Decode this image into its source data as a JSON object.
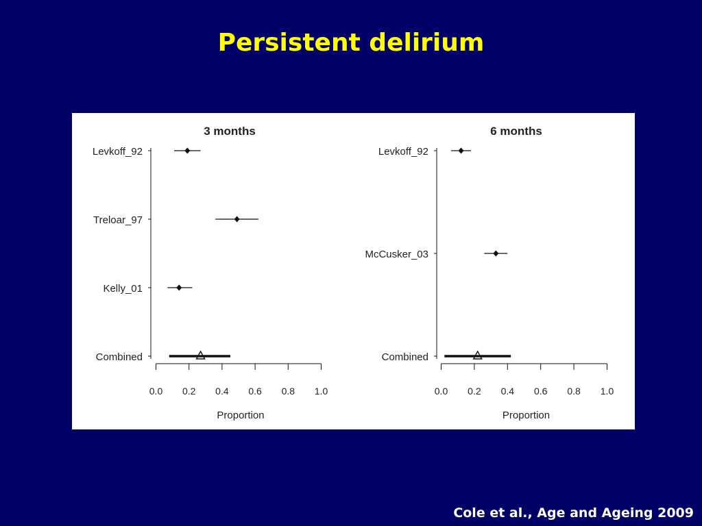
{
  "slide": {
    "title": "Persistent delirium",
    "citation": "Cole et al., Age and Ageing 2009"
  },
  "colors": {
    "background": "#000066",
    "title": "#ffff00",
    "citation": "#ffffff",
    "panel": "#ffffff",
    "marks": "#111111"
  },
  "chart_data": [
    {
      "type": "forest",
      "title": "3 months",
      "xlabel": "Proportion",
      "xlim": [
        0.0,
        1.0
      ],
      "xticks": [
        "0.0",
        "0.2",
        "0.4",
        "0.6",
        "0.8",
        "1.0"
      ],
      "grid": false,
      "studies": [
        {
          "label": "Levkoff_92",
          "estimate": 0.19,
          "lower": 0.11,
          "upper": 0.27
        },
        {
          "label": "Treloar_97",
          "estimate": 0.49,
          "lower": 0.36,
          "upper": 0.62
        },
        {
          "label": "Kelly_01",
          "estimate": 0.14,
          "lower": 0.07,
          "upper": 0.22
        }
      ],
      "combined": {
        "label": "Combined",
        "estimate": 0.27,
        "lower": 0.08,
        "upper": 0.45
      }
    },
    {
      "type": "forest",
      "title": "6 months",
      "xlabel": "Proportion",
      "xlim": [
        0.0,
        1.0
      ],
      "xticks": [
        "0.0",
        "0.2",
        "0.4",
        "0.6",
        "0.8",
        "1.0"
      ],
      "grid": false,
      "studies": [
        {
          "label": "Levkoff_92",
          "estimate": 0.12,
          "lower": 0.06,
          "upper": 0.18
        },
        {
          "label": "McCusker_03",
          "estimate": 0.33,
          "lower": 0.26,
          "upper": 0.4
        }
      ],
      "combined": {
        "label": "Combined",
        "estimate": 0.22,
        "lower": 0.02,
        "upper": 0.42
      }
    }
  ]
}
